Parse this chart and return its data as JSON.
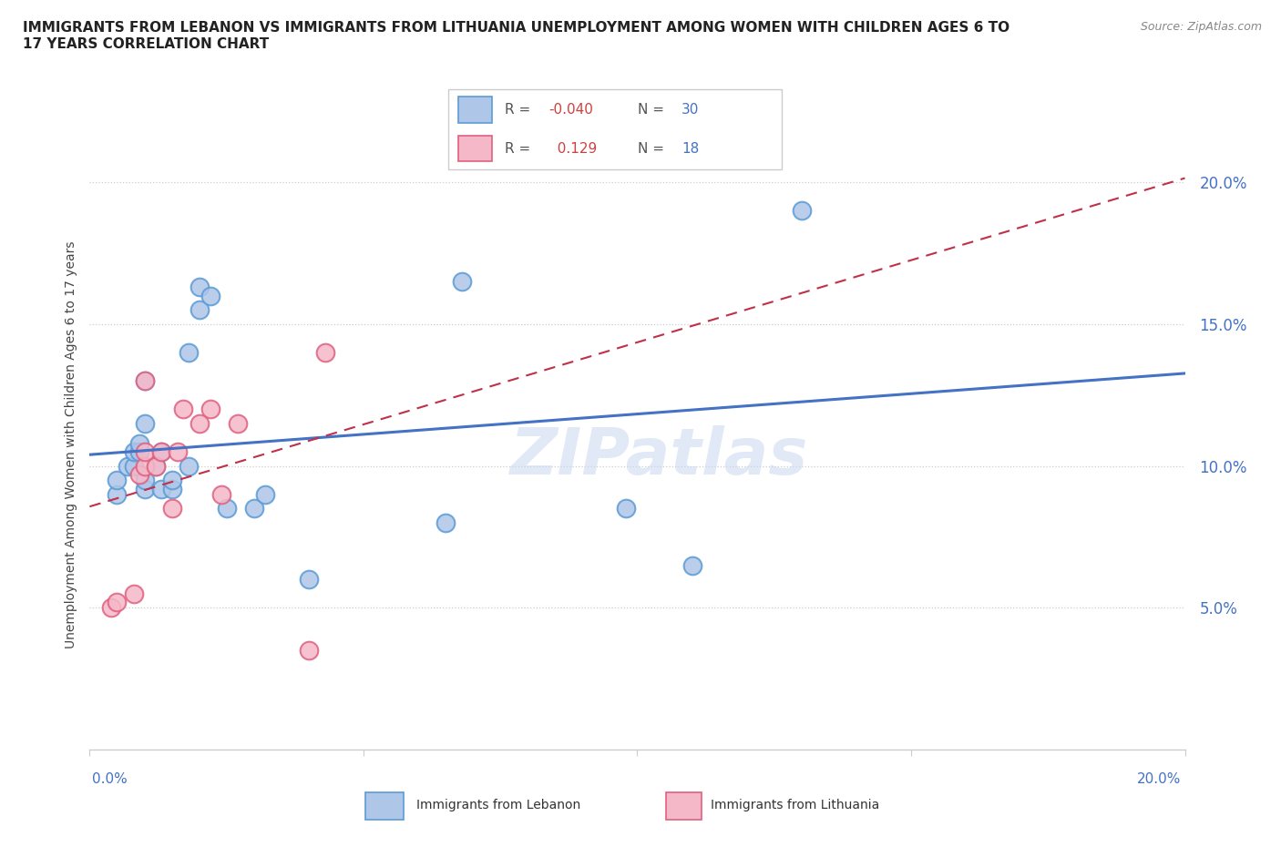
{
  "title": "IMMIGRANTS FROM LEBANON VS IMMIGRANTS FROM LITHUANIA UNEMPLOYMENT AMONG WOMEN WITH CHILDREN AGES 6 TO\n17 YEARS CORRELATION CHART",
  "source": "Source: ZipAtlas.com",
  "ylabel": "Unemployment Among Women with Children Ages 6 to 17 years",
  "xlim": [
    0.0,
    0.2
  ],
  "ylim": [
    0.0,
    0.215
  ],
  "yticks": [
    0.05,
    0.1,
    0.15,
    0.2
  ],
  "ytick_labels": [
    "5.0%",
    "10.0%",
    "15.0%",
    "20.0%"
  ],
  "xticks": [
    0.0,
    0.05,
    0.1,
    0.15,
    0.2
  ],
  "lebanon_color": "#aec6e8",
  "lithuania_color": "#f5b8c8",
  "lebanon_edge_color": "#5b9bd5",
  "lithuania_edge_color": "#e06080",
  "trend_lebanon_color": "#4472c4",
  "trend_lithuania_color": "#c0304a",
  "legend_R_lebanon": "-0.040",
  "legend_N_lebanon": "30",
  "legend_R_lithuania": "0.129",
  "legend_N_lithuania": "18",
  "watermark": "ZIPatlas",
  "lebanon_x": [
    0.005,
    0.005,
    0.007,
    0.008,
    0.008,
    0.009,
    0.009,
    0.01,
    0.01,
    0.01,
    0.01,
    0.012,
    0.013,
    0.013,
    0.015,
    0.015,
    0.018,
    0.018,
    0.02,
    0.02,
    0.022,
    0.025,
    0.03,
    0.032,
    0.04,
    0.065,
    0.068,
    0.098,
    0.11,
    0.13
  ],
  "lebanon_y": [
    0.09,
    0.095,
    0.1,
    0.1,
    0.105,
    0.105,
    0.108,
    0.092,
    0.095,
    0.115,
    0.13,
    0.1,
    0.105,
    0.092,
    0.092,
    0.095,
    0.1,
    0.14,
    0.155,
    0.163,
    0.16,
    0.085,
    0.085,
    0.09,
    0.06,
    0.08,
    0.165,
    0.085,
    0.065,
    0.19
  ],
  "lithuania_x": [
    0.004,
    0.005,
    0.008,
    0.009,
    0.01,
    0.01,
    0.01,
    0.012,
    0.013,
    0.015,
    0.016,
    0.017,
    0.02,
    0.022,
    0.024,
    0.027,
    0.04,
    0.043
  ],
  "lithuania_y": [
    0.05,
    0.052,
    0.055,
    0.097,
    0.1,
    0.105,
    0.13,
    0.1,
    0.105,
    0.085,
    0.105,
    0.12,
    0.115,
    0.12,
    0.09,
    0.115,
    0.035,
    0.14
  ],
  "grid_color": "#cccccc",
  "spine_color": "#cccccc",
  "tick_color": "#4472c4",
  "background_color": "#ffffff"
}
